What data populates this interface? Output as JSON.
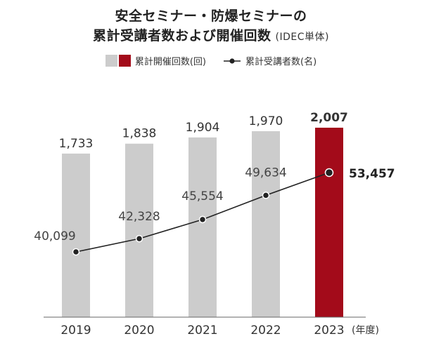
{
  "title": {
    "line1": "安全セミナー・防爆セミナーの",
    "line2": "累計受講者数および開催回数",
    "note": "(IDEC単体)"
  },
  "legend": {
    "bar_label": "累計開催回数(回)",
    "line_label": "累計受講者数(名)"
  },
  "colors": {
    "bar": "#cccccc",
    "bar_highlight": "#a30b1a",
    "line": "#222222",
    "axis": "#666666"
  },
  "chart_data": {
    "type": "bar",
    "categories": [
      "2019",
      "2020",
      "2021",
      "2022",
      "2023"
    ],
    "series": [
      {
        "name": "累計開催回数(回)",
        "type": "bar",
        "values": [
          1733,
          1838,
          1904,
          1970,
          2007
        ],
        "labels": [
          "1,733",
          "1,838",
          "1,904",
          "1,970",
          "2,007"
        ],
        "highlight_index": 4
      },
      {
        "name": "累計受講者数(名)",
        "type": "line",
        "values": [
          40099,
          42328,
          45554,
          49634,
          53457
        ],
        "labels": [
          "40,099",
          "42,328",
          "45,554",
          "49,634",
          "53,457"
        ],
        "highlight_index": 4
      }
    ],
    "x_unit": "(年度)",
    "bar_ylim": [
      0,
      2200
    ],
    "line_ylim": [
      25000,
      60000
    ],
    "grid": false,
    "legend_position": "top"
  }
}
